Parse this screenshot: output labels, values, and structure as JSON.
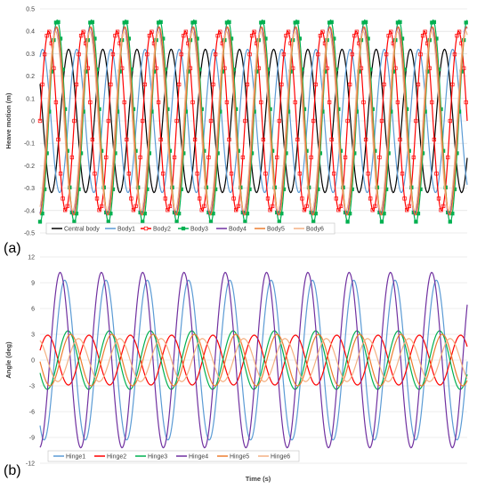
{
  "chart_data": [
    {
      "type": "line",
      "panel_label": "(a)",
      "title": "",
      "xlabel": "",
      "ylabel": "Heave motion (m)",
      "ylim": [
        -0.5,
        0.5
      ],
      "yticks": [
        "0.5",
        "0.4",
        "0.3",
        "0.2",
        "0.1",
        "0",
        "-0.1",
        "-0.2",
        "-0.3",
        "-0.4",
        "-0.5"
      ],
      "x": [
        0,
        300
      ],
      "grid": true,
      "legend_position": "bottom",
      "series": [
        {
          "name": "Central body",
          "color": "#000000",
          "amplitude": 0.32,
          "period": 24,
          "phase": 2.6,
          "marker": "none"
        },
        {
          "name": "Body1",
          "color": "#5b9bd5",
          "amplitude": 0.32,
          "period": 24,
          "phase": 1.1,
          "marker": "none"
        },
        {
          "name": "Body2",
          "color": "#ff0000",
          "amplitude": 0.4,
          "period": 24,
          "phase": 0.0,
          "marker": "square-open"
        },
        {
          "name": "Body3",
          "color": "#00b050",
          "amplitude": 0.45,
          "period": 24,
          "phase": 4.7,
          "marker": "square-filled"
        },
        {
          "name": "Body4",
          "color": "#7030a0",
          "amplitude": 0.42,
          "period": 24,
          "phase": 4.9,
          "marker": "none"
        },
        {
          "name": "Body5",
          "color": "#ed7d31",
          "amplitude": 0.42,
          "period": 24,
          "phase": 4.8,
          "marker": "none"
        },
        {
          "name": "Body6",
          "color": "#f4b183",
          "amplitude": 0.4,
          "period": 24,
          "phase": 5.0,
          "marker": "none"
        }
      ]
    },
    {
      "type": "line",
      "panel_label": "(b)",
      "title": "",
      "xlabel": "Time (s)",
      "ylabel": "Angle (deg)",
      "ylim": [
        -12,
        12
      ],
      "yticks": [
        "12",
        "9",
        "6",
        "3",
        "0",
        "-3",
        "-6",
        "-9",
        "-12"
      ],
      "x": [
        0,
        300
      ],
      "grid": true,
      "legend_position": "bottom",
      "series": [
        {
          "name": "Hinge1",
          "color": "#5b9bd5",
          "amplitude": 9.3,
          "period": 29,
          "phase": 4.1
        },
        {
          "name": "Hinge2",
          "color": "#ff0000",
          "amplitude": 2.9,
          "period": 29,
          "phase": 0.4
        },
        {
          "name": "Hinge3",
          "color": "#00b050",
          "amplitude": 3.4,
          "period": 29,
          "phase": 3.6
        },
        {
          "name": "Hinge4",
          "color": "#7030a0",
          "amplitude": 10.2,
          "period": 29,
          "phase": 4.8
        },
        {
          "name": "Hinge5",
          "color": "#ed7d31",
          "amplitude": 3.0,
          "period": 29,
          "phase": 3.2
        },
        {
          "name": "Hinge6",
          "color": "#f4b183",
          "amplitude": 2.5,
          "period": 29,
          "phase": 2.0
        }
      ]
    }
  ]
}
